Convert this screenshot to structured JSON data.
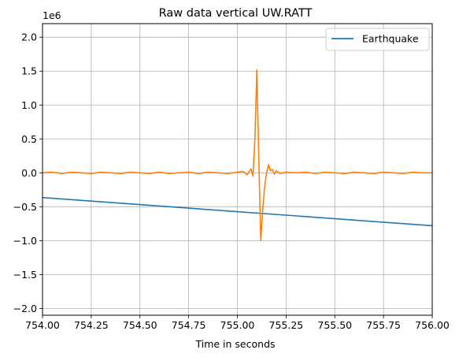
{
  "chart_data": {
    "type": "line",
    "title": "Raw data vertical UW.RATT",
    "xlabel": "Time in seconds",
    "ylabel": "",
    "y_offset_label": "1e6",
    "xlim": [
      754.0,
      756.0
    ],
    "ylim": [
      -2.1,
      2.2
    ],
    "x_ticks": [
      754.0,
      754.25,
      754.5,
      754.75,
      755.0,
      755.25,
      755.5,
      755.75,
      756.0
    ],
    "x_tick_labels": [
      "754.00",
      "754.25",
      "754.50",
      "754.75",
      "755.00",
      "755.25",
      "755.50",
      "755.75",
      "756.00"
    ],
    "y_ticks": [
      -2.0,
      -1.5,
      -1.0,
      -0.5,
      0.0,
      0.5,
      1.0,
      1.5,
      2.0
    ],
    "y_tick_labels": [
      "−2.0",
      "−1.5",
      "−1.0",
      "−0.5",
      "0.0",
      "0.5",
      "1.0",
      "1.5",
      "2.0"
    ],
    "grid": true,
    "legend_placement": "top-right",
    "series": [
      {
        "name": "Earthquake",
        "color": "#1f77b4",
        "x": [
          754.0,
          756.0
        ],
        "y": [
          -0.365,
          -0.78
        ]
      },
      {
        "color": "#ff7f0e",
        "x": [
          754.0,
          754.05,
          754.1,
          754.15,
          754.2,
          754.25,
          754.3,
          754.35,
          754.4,
          754.45,
          754.5,
          754.55,
          754.6,
          754.65,
          754.7,
          754.75,
          754.8,
          754.85,
          754.9,
          754.95,
          755.0,
          755.03,
          755.05,
          755.07,
          755.08,
          755.09,
          755.1,
          755.11,
          755.12,
          755.13,
          755.14,
          755.15,
          755.16,
          755.17,
          755.18,
          755.19,
          755.2,
          755.22,
          755.25,
          755.3,
          755.35,
          755.4,
          755.45,
          755.5,
          755.55,
          755.6,
          755.65,
          755.7,
          755.75,
          755.8,
          755.85,
          755.9,
          755.95,
          756.0
        ],
        "y": [
          0.0,
          0.01,
          -0.01,
          0.01,
          0.0,
          -0.01,
          0.01,
          0.0,
          -0.01,
          0.01,
          0.0,
          -0.01,
          0.01,
          -0.01,
          0.0,
          0.01,
          -0.01,
          0.01,
          0.0,
          -0.01,
          0.01,
          0.02,
          -0.03,
          0.06,
          -0.05,
          0.5,
          1.52,
          0.2,
          -1.0,
          -0.55,
          -0.2,
          0.0,
          0.12,
          0.03,
          0.05,
          -0.02,
          0.03,
          -0.01,
          0.01,
          0.0,
          0.01,
          -0.01,
          0.01,
          0.0,
          -0.01,
          0.01,
          0.0,
          -0.01,
          0.01,
          0.0,
          -0.01,
          0.01,
          0.0,
          0.0
        ]
      }
    ]
  }
}
